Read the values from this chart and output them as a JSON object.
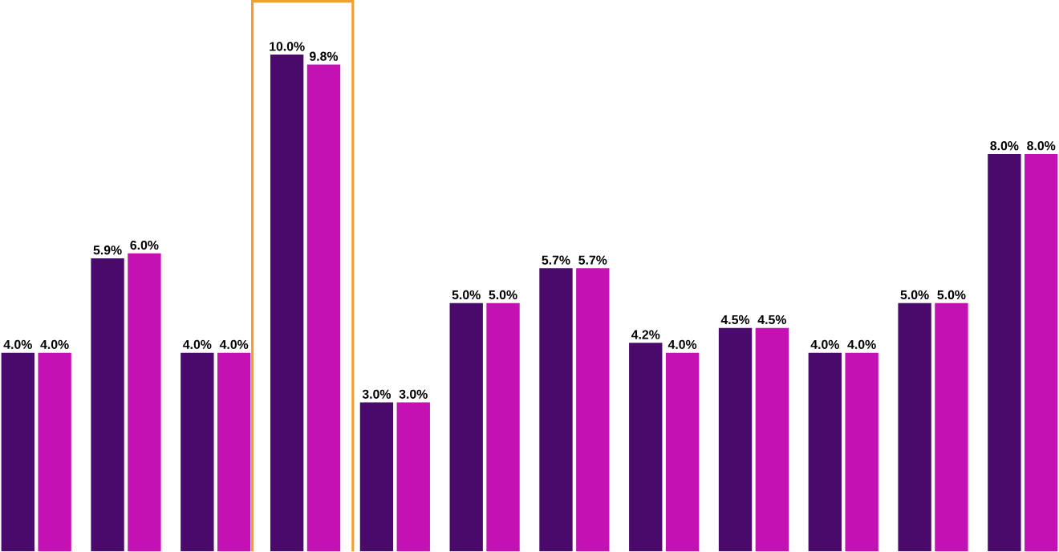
{
  "chart_data": {
    "type": "bar",
    "categories": [
      null,
      null,
      null,
      null,
      null,
      null,
      null,
      null,
      null,
      null,
      null,
      null
    ],
    "series": [
      {
        "color": "#4a0a6b",
        "values": [
          4.0,
          5.9,
          4.0,
          10.0,
          3.0,
          5.0,
          5.7,
          4.2,
          4.5,
          4.0,
          5.0,
          8.0
        ],
        "value_labels": [
          "4.0%",
          "5.9%",
          "4.0%",
          "10.0%",
          "3.0%",
          "5.0%",
          "5.7%",
          "4.2%",
          "4.5%",
          "4.0%",
          "5.0%",
          "8.0%"
        ]
      },
      {
        "color": "#c411b3",
        "values": [
          4.0,
          6.0,
          4.0,
          9.8,
          3.0,
          5.0,
          5.7,
          4.0,
          4.5,
          4.0,
          5.0,
          8.0
        ],
        "value_labels": [
          "4.0%",
          "6.0%",
          "4.0%",
          "9.8%",
          "3.0%",
          "5.0%",
          "5.7%",
          "4.0%",
          "4.5%",
          "4.0%",
          "5.0%",
          "8.0%"
        ]
      }
    ]
  }
}
